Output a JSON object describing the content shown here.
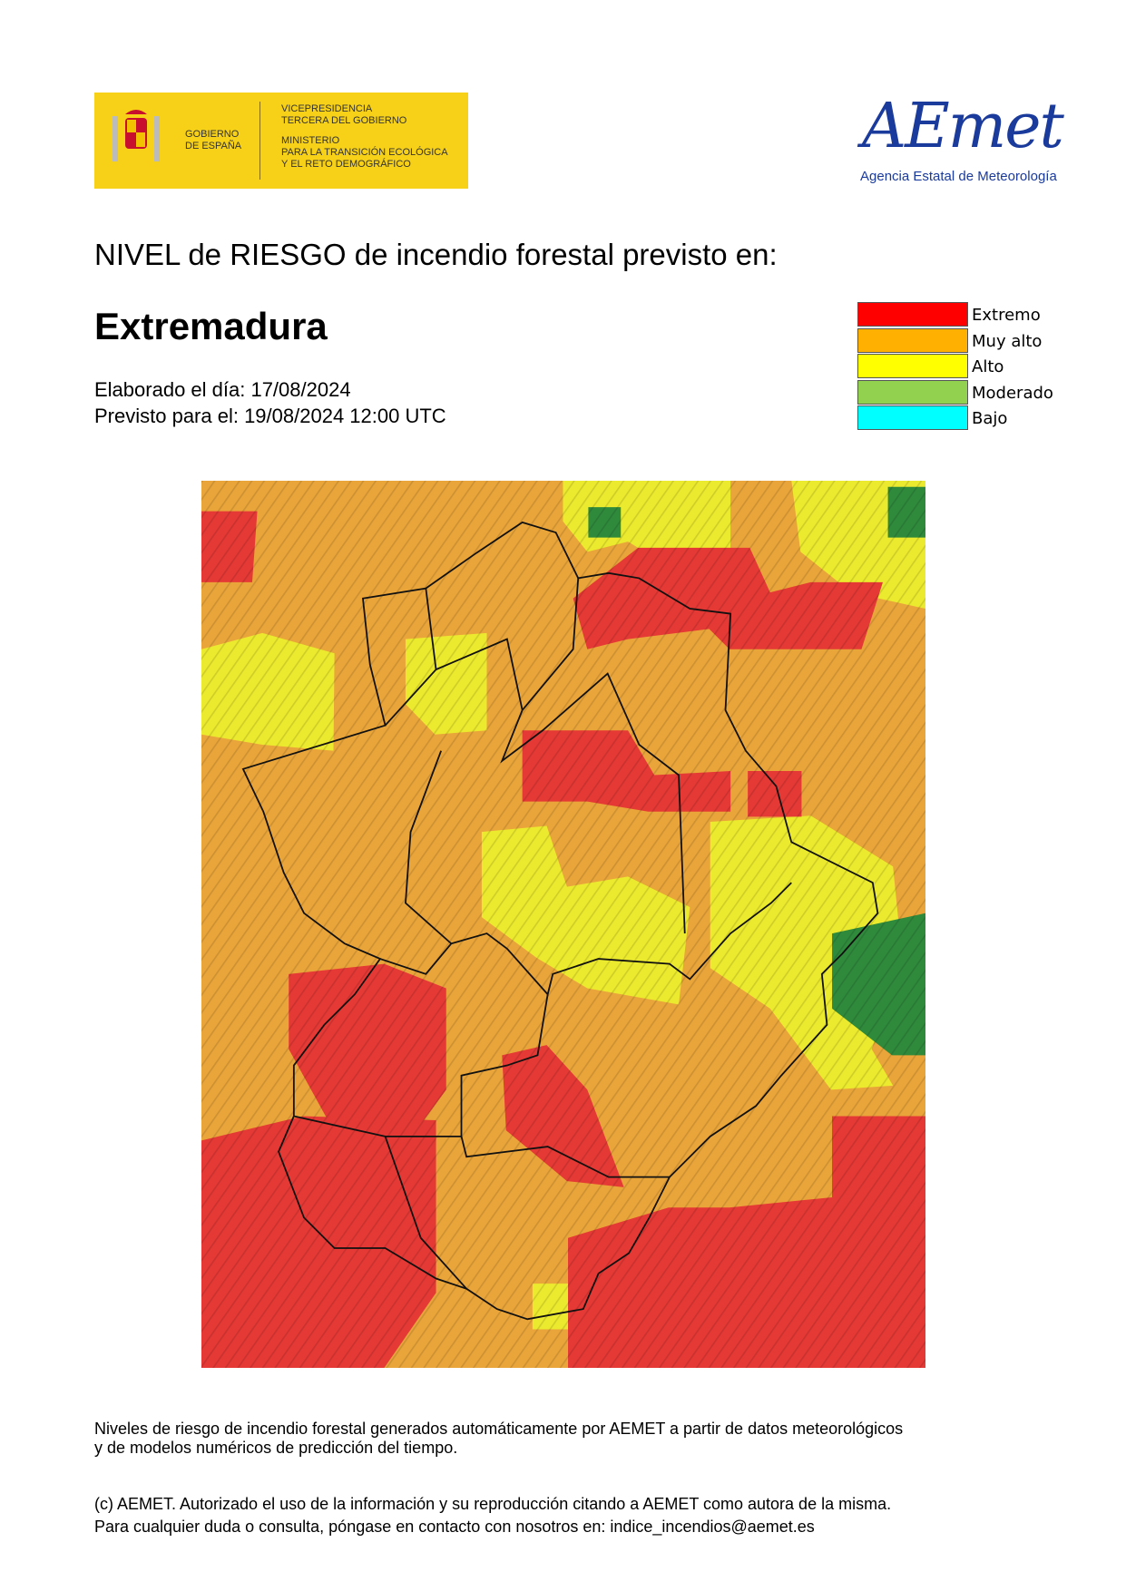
{
  "header": {
    "gov_left": [
      "GOBIERNO",
      "DE ESPAÑA"
    ],
    "gov_right": [
      "VICEPRESIDENCIA",
      "TERCERA DEL GOBIERNO",
      "MINISTERIO",
      "PARA LA TRANSICIÓN ECOLÓGICA",
      "Y EL RETO DEMOGRÁFICO"
    ],
    "aemet_logo": "AEmet",
    "aemet_name": "Agencia Estatal de Meteorología"
  },
  "title": "NIVEL de RIESGO de incendio forestal previsto en:",
  "region": "Extremadura",
  "issued": "Elaborado el día: 17/08/2024",
  "valid": "Previsto para el: 19/08/2024 12:00 UTC",
  "legend": [
    {
      "label": "Extremo",
      "color": "#ff0000"
    },
    {
      "label": "Muy alto",
      "color": "#ffb000"
    },
    {
      "label": "Alto",
      "color": "#ffff00"
    },
    {
      "label": "Moderado",
      "color": "#92d050"
    },
    {
      "label": "Bajo",
      "color": "#00ffff"
    }
  ],
  "footer": [
    "Niveles de riesgo de incendio forestal generados automáticamente por AEMET a partir de datos meteorológicos",
    "y de modelos numéricos de predicción del tiempo.",
    "(c) AEMET. Autorizado el uso de la información y su reproducción citando a AEMET como autora de la misma.",
    "Para cualquier duda o consulta, póngase en contacto con nosotros en: indice_incendios@aemet.es"
  ]
}
